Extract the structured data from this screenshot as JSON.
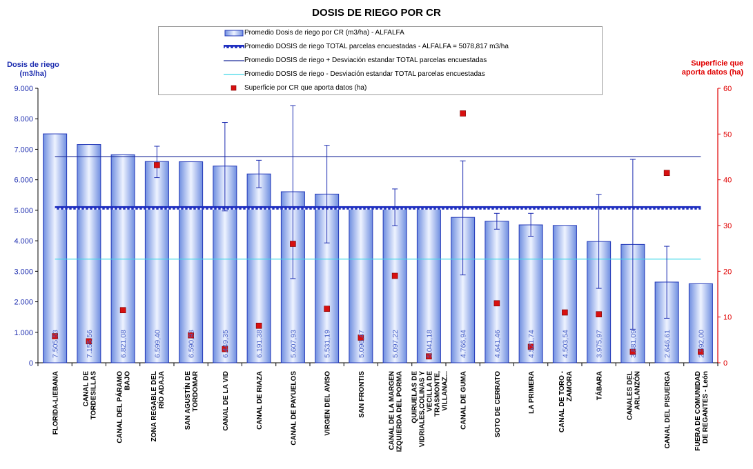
{
  "chart_data": {
    "type": "bar",
    "title": "DOSIS DE RIEGO POR CR",
    "ylabel_left": "Dosis de riego (m3/ha)",
    "ylabel_right": "Superficie que aporta datos (ha)",
    "y_left_ticks": [
      "0",
      "1.000",
      "2.000",
      "3.000",
      "4.000",
      "5.000",
      "6.000",
      "7.000",
      "8.000",
      "9.000"
    ],
    "y_right_ticks": [
      "0",
      "10",
      "20",
      "30",
      "40",
      "50",
      "60"
    ],
    "ylim_left": [
      0,
      9000
    ],
    "ylim_right": [
      0,
      60
    ],
    "legend_placement": "top-center",
    "grid": false,
    "colors": {
      "bar_fill": "#9cb4ea",
      "bar_edge": "#2338b8",
      "avg_total": "#2030c0",
      "plus_std": "#1a2a9a",
      "minus_std": "#3fd8e8",
      "errorbar": "#1a2ab0",
      "surface": "#d81010",
      "right_axis": "#e00000",
      "left_axis": "#1f2fb0"
    },
    "legend": [
      "Promedio Dosis de riego por CR (m3/ha) - ALFALFA",
      "Promedio DOSIS de riego TOTAL parcelas encuestadas - ALFALFA = 5078,817 m3/ha",
      "Promedio DOSIS de riego + Desviación estandar TOTAL parcelas encuestadas",
      "Promedio DOSIS de riego - Desviación estandar TOTAL parcelas encuestadas",
      "Superficie por CR que aporta datos (ha)"
    ],
    "categories": [
      "FLORIDA-LIEBANA",
      "CANAL DE TORDESILLAS",
      "CANAL DEL PÁRAMO BAJO",
      "ZONA REGABLE DEL RÍO ADAJA",
      "SAN AGUSTÍN DE TORDOMAR",
      "CANAL DE LA VID",
      "CANAL DE RIAZA",
      "CANAL DE PAYUELOS",
      "VIRGEN DEL AVISO",
      "SAN FRONTIS",
      "CANAL DE LA MARGEN IZQUIERDA DEL PORMA",
      "QUIRUELAS DE VIDRIALES,COLINAS Y VECILLA DE TRASMONTE, VILLANAZ...",
      "CANAL DE GUMA",
      "SOTO DE CERRATO",
      "LA PRIMERA",
      "CANAL DE TORO - ZAMORA",
      "TÁBARA",
      "CANALES DEL ARLANZÓN",
      "CANAL DEL PISUERGA",
      "FUERA DE COMUNIDAD DE REGANTES - León"
    ],
    "series": [
      {
        "name": "Promedio Dosis de riego por CR (m3/ha) - ALFALFA",
        "type": "bar",
        "values": [
          7505.53,
          7155.56,
          6821.08,
          6599.4,
          6590.93,
          6449.35,
          6191.38,
          5607.93,
          5531.19,
          5096.47,
          5097.22,
          5041.18,
          4766.94,
          4641.46,
          4521.74,
          4503.54,
          3975.97,
          3881.09,
          2646.61,
          2592.0
        ],
        "labels": [
          "7.505,53",
          "7.155,56",
          "6.821,08",
          "6.599,40",
          "6.590,93",
          "6.449,35",
          "6.191,38",
          "5.607,93",
          "5.531,19",
          "5.096,47",
          "5.097,22",
          "5.041,18",
          "4.766,94",
          "4.641,46",
          "4.521,74",
          "4.503,54",
          "3.975,97",
          "3.881,09",
          "2.646,61",
          "2.592,00"
        ],
        "error_high": [
          null,
          null,
          null,
          7100,
          null,
          7880,
          6640,
          8430,
          7130,
          null,
          5700,
          null,
          6620,
          4900,
          4900,
          null,
          5520,
          6670,
          3820,
          null
        ],
        "error_low": [
          null,
          null,
          null,
          6070,
          null,
          4980,
          5740,
          2760,
          3930,
          null,
          4490,
          null,
          2880,
          4380,
          4150,
          null,
          2440,
          1100,
          1460,
          null
        ]
      },
      {
        "name": "Superficie por CR que aporta datos (ha)",
        "type": "scatter",
        "axis": "right",
        "values": [
          5.8,
          4.7,
          11.5,
          43.2,
          6.0,
          3.0,
          8.1,
          26.0,
          11.8,
          5.5,
          19.0,
          1.4,
          54.5,
          13.0,
          3.5,
          11.0,
          10.6,
          2.4,
          41.5,
          2.4
        ]
      }
    ],
    "reference_lines": [
      {
        "name": "Promedio DOSIS de riego TOTAL parcelas encuestadas - ALFALFA = 5078,817 m3/ha",
        "value": 5078.817
      },
      {
        "name": "Promedio DOSIS de riego + Desviación estandar TOTAL parcelas encuestadas",
        "value": 6760
      },
      {
        "name": "Promedio DOSIS de riego - Desviación estandar TOTAL parcelas encuestadas",
        "value": 3400
      }
    ]
  }
}
